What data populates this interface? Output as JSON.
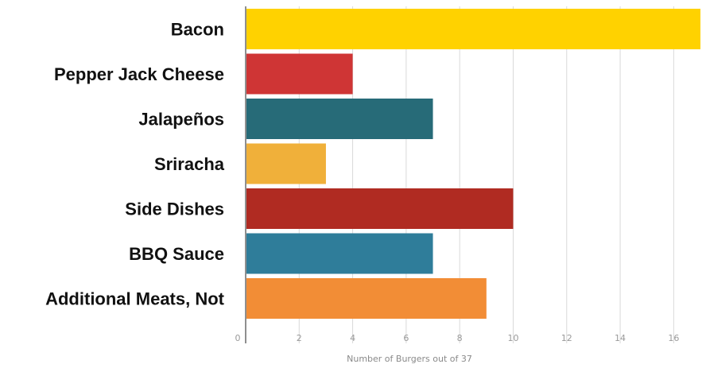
{
  "chart_data": {
    "type": "bar",
    "orientation": "horizontal",
    "categories": [
      "Bacon",
      "Pepper Jack Cheese",
      "Jalapeños",
      "Sriracha",
      "Side Dishes",
      "BBQ Sauce",
      "Additional Meats, Not"
    ],
    "values": [
      17,
      4,
      7,
      3,
      10,
      7,
      9
    ],
    "bar_colors": [
      "#ffd200",
      "#cf3535",
      "#276b78",
      "#f0b03a",
      "#b02b22",
      "#2f7d9a",
      "#f28d36"
    ],
    "title": "",
    "xlabel": "Number of Burgers out of 37",
    "ylabel": "",
    "xlim": [
      0,
      17
    ],
    "x_ticks": [
      0,
      2,
      4,
      6,
      8,
      10,
      12,
      14,
      16
    ],
    "x_tick_labels": [
      "0",
      "2",
      "4",
      "6",
      "8",
      "10",
      "12",
      "14",
      "16"
    ],
    "grid": true,
    "legend": "none"
  }
}
